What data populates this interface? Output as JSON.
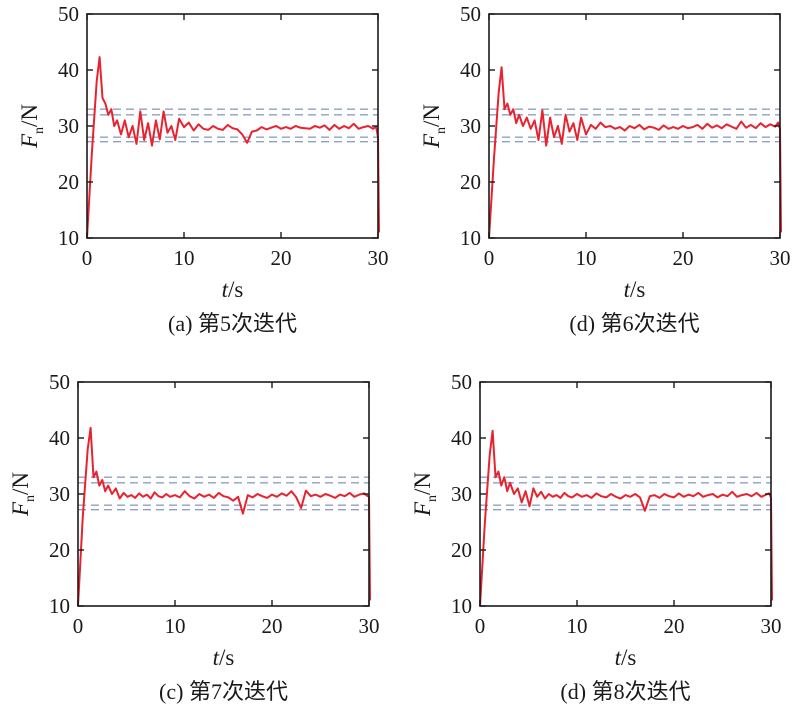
{
  "chart_data": [
    {
      "type": "line",
      "caption": "(a) 第5次迭代",
      "xlabel": "t/s",
      "ylabel": "F_n/N",
      "xlim": [
        0,
        30
      ],
      "ylim": [
        10,
        50
      ],
      "xticks": [
        0,
        10,
        20,
        30
      ],
      "yticks": [
        10,
        20,
        30,
        40,
        50
      ],
      "reference_lines": [
        27.2,
        28,
        32,
        33
      ],
      "series": [
        {
          "color": "#e8232f",
          "x": [
            0,
            0.5,
            1.0,
            1.3,
            1.6,
            1.9,
            2.2,
            2.5,
            2.8,
            3.1,
            3.5,
            3.9,
            4.3,
            4.7,
            5.1,
            5.5,
            5.9,
            6.3,
            6.7,
            7.1,
            7.5,
            7.9,
            8.3,
            8.7,
            9.1,
            9.5,
            10,
            10.5,
            11,
            11.5,
            12,
            12.5,
            13,
            13.5,
            14,
            14.5,
            15,
            15.5,
            16,
            16.5,
            17,
            17.5,
            18,
            18.5,
            19,
            19.5,
            20,
            20.5,
            21,
            21.5,
            22,
            22.5,
            23,
            23.5,
            24,
            24.5,
            25,
            25.5,
            26,
            26.5,
            27,
            27.5,
            28,
            28.5,
            29,
            29.5,
            29.8,
            30.0,
            30.1
          ],
          "y": [
            10,
            25,
            38,
            42.3,
            35,
            34,
            32,
            33,
            30,
            31,
            28.5,
            31,
            28,
            30,
            26.8,
            32.6,
            27.5,
            30.5,
            26.5,
            31,
            27.6,
            32.6,
            28.8,
            30,
            27.5,
            31.3,
            29.8,
            30.6,
            29.2,
            30.3,
            29.5,
            29.3,
            30,
            29.5,
            29.3,
            30.2,
            29.6,
            29.4,
            28.5,
            27,
            29,
            29.2,
            29.8,
            29.4,
            29.7,
            30,
            29.5,
            29.8,
            29.5,
            30,
            29.7,
            29.6,
            29.5,
            30,
            29.7,
            30.1,
            29.3,
            30.2,
            29.5,
            30,
            29.6,
            30.4,
            29.5,
            29.8,
            30,
            29.5,
            29.9,
            28,
            11
          ]
        }
      ]
    },
    {
      "type": "line",
      "caption": "(d) 第6次迭代",
      "xlabel": "t/s",
      "ylabel": "F_n/N",
      "xlim": [
        0,
        30
      ],
      "ylim": [
        10,
        50
      ],
      "xticks": [
        0,
        10,
        20,
        30
      ],
      "yticks": [
        10,
        20,
        30,
        40,
        50
      ],
      "reference_lines": [
        27.2,
        28,
        32,
        33
      ],
      "series": [
        {
          "color": "#e8232f",
          "x": [
            0,
            0.5,
            1.0,
            1.3,
            1.6,
            1.9,
            2.2,
            2.5,
            2.8,
            3.1,
            3.5,
            3.9,
            4.3,
            4.7,
            5.1,
            5.5,
            5.9,
            6.3,
            6.7,
            7.1,
            7.5,
            7.9,
            8.3,
            8.7,
            9.1,
            9.5,
            10,
            10.5,
            11,
            11.5,
            12,
            12.5,
            13,
            13.5,
            14,
            14.5,
            15,
            15.5,
            16,
            16.5,
            17,
            17.5,
            18,
            18.5,
            19,
            19.5,
            20,
            20.5,
            21,
            21.5,
            22,
            22.5,
            23,
            23.5,
            24,
            24.5,
            25,
            25.5,
            26,
            26.5,
            27,
            27.5,
            28,
            28.5,
            29,
            29.5,
            29.8,
            30.0,
            30.1
          ],
          "y": [
            10,
            24,
            36,
            40.5,
            33,
            34,
            32,
            33,
            30.5,
            32,
            30,
            31.5,
            29.5,
            31,
            27.5,
            32.8,
            26.5,
            31.5,
            28,
            30,
            26.8,
            32,
            29,
            30.5,
            27.5,
            31.5,
            28.5,
            30.2,
            29.5,
            30.6,
            29.8,
            30,
            29.5,
            29.8,
            29.2,
            30,
            29.6,
            30.2,
            29.4,
            29.9,
            29.7,
            29.3,
            30.1,
            29.5,
            29.8,
            29.5,
            30,
            29.6,
            29.8,
            30.2,
            29.5,
            30.4,
            29.7,
            30.1,
            29.6,
            30.3,
            29.9,
            29.5,
            30.8,
            29.7,
            30.2,
            29.6,
            30.5,
            29.8,
            30.3,
            29.9,
            30.6,
            29.5,
            11
          ]
        }
      ]
    },
    {
      "type": "line",
      "caption": "(c) 第7次迭代",
      "xlabel": "t/s",
      "ylabel": "F_n/N",
      "xlim": [
        0,
        30
      ],
      "ylim": [
        10,
        50
      ],
      "xticks": [
        0,
        10,
        20,
        30
      ],
      "yticks": [
        10,
        20,
        30,
        40,
        50
      ],
      "reference_lines": [
        27.2,
        28,
        32,
        33
      ],
      "series": [
        {
          "color": "#e8232f",
          "x": [
            0,
            0.5,
            1.0,
            1.3,
            1.6,
            1.9,
            2.2,
            2.5,
            2.8,
            3.1,
            3.5,
            3.9,
            4.3,
            4.7,
            5.1,
            5.5,
            5.9,
            6.3,
            6.7,
            7.1,
            7.5,
            7.9,
            8.3,
            8.7,
            9.1,
            9.5,
            10,
            10.5,
            11,
            11.5,
            12,
            12.5,
            13,
            13.5,
            14,
            14.5,
            15,
            15.5,
            16,
            16.5,
            17,
            17.5,
            18,
            18.5,
            19,
            19.5,
            20,
            20.5,
            21,
            21.5,
            22,
            22.5,
            23,
            23.5,
            24,
            24.5,
            25,
            25.5,
            26,
            26.5,
            27,
            27.5,
            28,
            28.5,
            29,
            29.5,
            29.8,
            30.0,
            30.1
          ],
          "y": [
            10,
            26,
            38,
            41.8,
            33,
            34,
            31.5,
            32.5,
            30.5,
            31.5,
            30,
            31,
            29.2,
            30.2,
            29.5,
            29.8,
            29.3,
            30.1,
            29.5,
            29.9,
            29.2,
            30.3,
            29.6,
            29.4,
            30,
            29.5,
            29.8,
            29.4,
            30.5,
            29.6,
            29.2,
            30,
            29.5,
            29.9,
            29.3,
            30.2,
            29.6,
            29.4,
            28.8,
            29.5,
            26.5,
            29.8,
            29.4,
            30,
            29.6,
            29.3,
            29.9,
            29.5,
            30.1,
            29.7,
            30.5,
            29.4,
            27.5,
            30.6,
            29.6,
            29.9,
            29.5,
            30,
            29.7,
            29.3,
            29.9,
            29.6,
            30.2,
            29.5,
            29.9,
            30.1,
            29.7,
            29.5,
            11
          ]
        }
      ]
    },
    {
      "type": "line",
      "caption": "(d) 第8次迭代",
      "xlabel": "t/s",
      "ylabel": "F_n/N",
      "xlim": [
        0,
        30
      ],
      "ylim": [
        10,
        50
      ],
      "xticks": [
        0,
        10,
        20,
        30
      ],
      "yticks": [
        10,
        20,
        30,
        40,
        50
      ],
      "reference_lines": [
        27.2,
        28,
        32,
        33
      ],
      "series": [
        {
          "color": "#e8232f",
          "x": [
            0,
            0.5,
            1.0,
            1.3,
            1.6,
            1.9,
            2.2,
            2.5,
            2.8,
            3.1,
            3.5,
            3.9,
            4.3,
            4.7,
            5.1,
            5.5,
            5.9,
            6.3,
            6.7,
            7.1,
            7.5,
            7.9,
            8.3,
            8.7,
            9.1,
            9.5,
            10,
            10.5,
            11,
            11.5,
            12,
            12.5,
            13,
            13.5,
            14,
            14.5,
            15,
            15.5,
            16,
            16.5,
            17,
            17.5,
            18,
            18.5,
            19,
            19.5,
            20,
            20.5,
            21,
            21.5,
            22,
            22.5,
            23,
            23.5,
            24,
            24.5,
            25,
            25.5,
            26,
            26.5,
            27,
            27.5,
            28,
            28.5,
            29,
            29.5,
            29.8,
            30.0,
            30.1
          ],
          "y": [
            10,
            25,
            37,
            41.3,
            33,
            34,
            31.5,
            33,
            30.5,
            32,
            30,
            31,
            28.5,
            30.5,
            27.8,
            31,
            29.5,
            30.4,
            29.2,
            30,
            29.5,
            29.8,
            29.3,
            30.2,
            29.6,
            29.4,
            30,
            29.5,
            29.8,
            29.3,
            30.1,
            29.6,
            29.4,
            30,
            29.5,
            29.2,
            29.8,
            29.5,
            30,
            29.4,
            27,
            29.6,
            29.8,
            29.3,
            30,
            29.6,
            29.4,
            30.1,
            29.5,
            29.9,
            29.6,
            30.2,
            29.5,
            29.8,
            30,
            29.4,
            29.9,
            29.6,
            30.4,
            29.5,
            29.8,
            30,
            29.6,
            30.2,
            29.5,
            29.9,
            30.1,
            29.4,
            11
          ]
        }
      ]
    }
  ]
}
